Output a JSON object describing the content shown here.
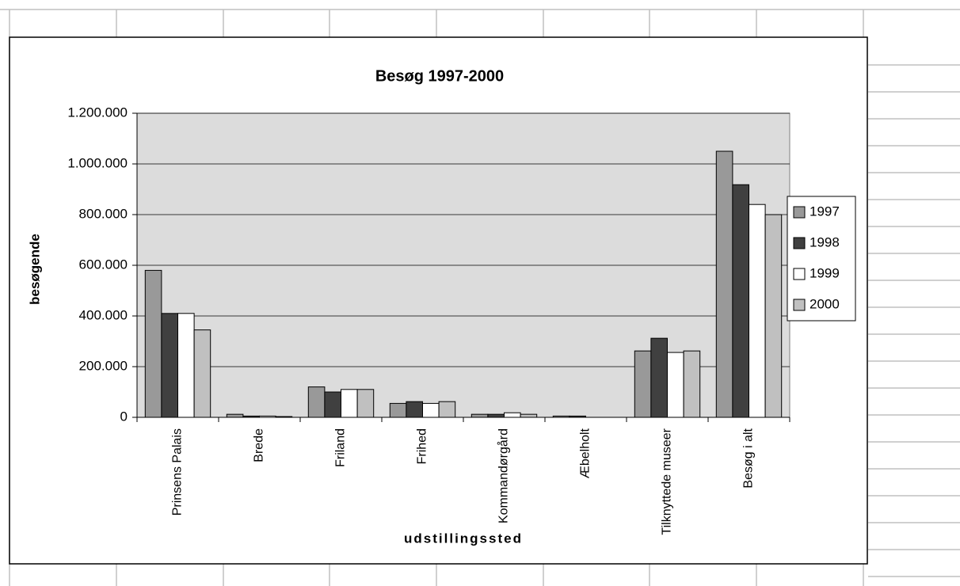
{
  "chart_data": {
    "type": "bar",
    "title": "Besøg 1997-2000",
    "x_label": "udstillingssted",
    "y_label": "besøgende",
    "categories": [
      "Prinsens Palais",
      "Brede",
      "Friland",
      "Frihed",
      "Kommandørgård",
      "Æbelholt",
      "Tilknyttede museer",
      "Besøg i alt"
    ],
    "series": [
      {
        "name": "1997",
        "color": "#999999",
        "values": [
          580000,
          12000,
          120000,
          55000,
          12000,
          5000,
          262000,
          1050000
        ]
      },
      {
        "name": "1998",
        "color": "#404040",
        "values": [
          410000,
          5000,
          100000,
          62000,
          12000,
          5000,
          312000,
          918000
        ]
      },
      {
        "name": "1999",
        "color": "#ffffff",
        "values": [
          410000,
          5000,
          110000,
          55000,
          18000,
          0,
          256000,
          840000
        ]
      },
      {
        "name": "2000",
        "color": "#c0c0c0",
        "values": [
          345000,
          3000,
          110000,
          62000,
          12000,
          0,
          262000,
          800000
        ]
      }
    ],
    "ylim": [
      0,
      1200000
    ],
    "yticks": [
      0,
      {
        "value": 200000,
        "label": "200.000"
      },
      {
        "value": 400000,
        "label": "400.000"
      },
      {
        "value": 600000,
        "label": "600.000"
      },
      {
        "value": 800000,
        "label": "800.000"
      },
      {
        "value": 1000000,
        "label": "1.000.000"
      },
      {
        "value": 1200000,
        "label": "1.200.000"
      }
    ],
    "grid": true,
    "legend": "right"
  }
}
